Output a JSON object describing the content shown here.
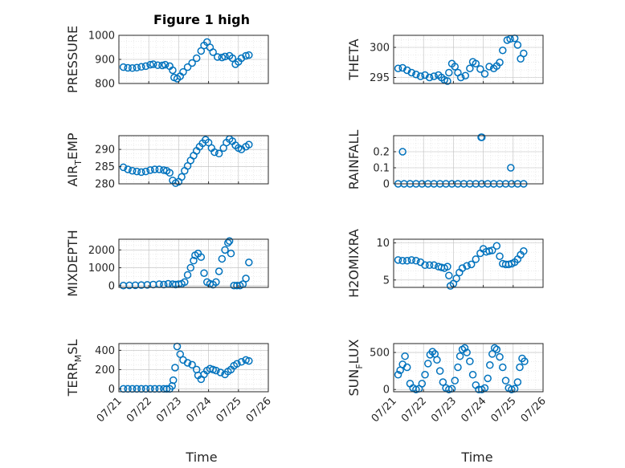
{
  "figure": {
    "title": "Figure 1 high",
    "marker_color": "#0072BD",
    "x_tick_labels": [
      "07/21",
      "07/22",
      "07/23",
      "07/24",
      "07/25",
      "07/26"
    ],
    "xlabel": "Time"
  },
  "chart_data": [
    {
      "type": "scatter",
      "ylabel": "PRESSURE",
      "ylabel_sub": "",
      "ylim": [
        800,
        1000
      ],
      "yticks": [
        800,
        900,
        1000
      ],
      "xlim": [
        0,
        5
      ],
      "x": [
        0.15,
        0.3,
        0.45,
        0.6,
        0.75,
        0.9,
        1.05,
        1.15,
        1.3,
        1.45,
        1.55,
        1.7,
        1.8,
        1.85,
        1.95,
        2.05,
        2.15,
        2.3,
        2.45,
        2.6,
        2.75,
        2.85,
        2.95,
        3.05,
        3.15,
        3.3,
        3.45,
        3.55,
        3.7,
        3.8,
        3.9,
        4.0,
        4.1,
        4.25,
        4.35
      ],
      "y": [
        868,
        865,
        864,
        866,
        869,
        872,
        878,
        880,
        876,
        875,
        878,
        872,
        855,
        825,
        820,
        830,
        848,
        868,
        885,
        905,
        935,
        958,
        972,
        950,
        930,
        910,
        908,
        912,
        915,
        905,
        880,
        890,
        905,
        915,
        918
      ]
    },
    {
      "type": "scatter",
      "ylabel": "THETA",
      "ylabel_sub": "",
      "ylim": [
        294,
        302
      ],
      "yticks": [
        295,
        300
      ],
      "xlim": [
        0,
        5
      ],
      "x": [
        0.15,
        0.3,
        0.45,
        0.6,
        0.75,
        0.9,
        1.05,
        1.2,
        1.35,
        1.5,
        1.6,
        1.7,
        1.8,
        1.85,
        1.95,
        2.05,
        2.15,
        2.25,
        2.4,
        2.55,
        2.65,
        2.75,
        2.9,
        3.05,
        3.2,
        3.35,
        3.45,
        3.55,
        3.65,
        3.8,
        3.9,
        4.05,
        4.15,
        4.25,
        4.35
      ],
      "y": [
        296.5,
        296.6,
        296.2,
        295.8,
        295.5,
        295.2,
        295.4,
        295.0,
        295.2,
        295.4,
        295.0,
        294.6,
        294.4,
        295.8,
        297.3,
        296.8,
        295.8,
        295.0,
        295.3,
        296.5,
        297.6,
        297.3,
        296.4,
        295.6,
        296.8,
        296.5,
        296.9,
        297.5,
        299.5,
        301.2,
        301.4,
        301.5,
        300.4,
        298.1,
        299.0
      ]
    },
    {
      "type": "scatter",
      "ylabel": "AIR",
      "ylabel_sub": "T",
      "ylabel_suffix": "EMP",
      "ylim": [
        280,
        294
      ],
      "yticks": [
        280,
        285,
        290
      ],
      "xlim": [
        0,
        5
      ],
      "x": [
        0.15,
        0.3,
        0.45,
        0.6,
        0.75,
        0.9,
        1.05,
        1.2,
        1.35,
        1.5,
        1.6,
        1.7,
        1.8,
        1.9,
        2.0,
        2.1,
        2.2,
        2.3,
        2.4,
        2.5,
        2.6,
        2.7,
        2.8,
        2.9,
        3.0,
        3.1,
        3.2,
        3.35,
        3.5,
        3.6,
        3.7,
        3.8,
        3.9,
        4.0,
        4.1,
        4.25,
        4.35
      ],
      "y": [
        284.8,
        284.2,
        283.8,
        283.6,
        283.4,
        283.6,
        284.0,
        284.2,
        284.2,
        284.0,
        283.8,
        283.2,
        281.0,
        280.2,
        280.6,
        282.0,
        283.8,
        285.2,
        286.8,
        288.2,
        289.6,
        290.8,
        291.8,
        292.8,
        292.0,
        290.4,
        289.2,
        288.8,
        290.4,
        292.0,
        293.0,
        292.4,
        291.2,
        290.4,
        290.0,
        290.8,
        291.4
      ]
    },
    {
      "type": "scatter",
      "ylabel": "RAINFALL",
      "ylabel_sub": "",
      "ylim": [
        0,
        0.3
      ],
      "yticks": [
        0,
        0.1,
        0.2
      ],
      "xlim": [
        0,
        5
      ],
      "x": [
        0.15,
        0.35,
        0.55,
        0.75,
        0.95,
        1.15,
        1.35,
        1.55,
        1.75,
        1.95,
        2.15,
        2.35,
        2.55,
        2.75,
        2.95,
        3.15,
        3.35,
        3.55,
        3.75,
        3.95,
        4.15,
        4.35,
        0.3,
        2.93,
        2.95,
        3.92
      ],
      "y": [
        0,
        0,
        0,
        0,
        0,
        0,
        0,
        0,
        0,
        0,
        0,
        0,
        0,
        0,
        0,
        0,
        0,
        0,
        0,
        0,
        0,
        0,
        0.2,
        0.29,
        0.29,
        0.1
      ]
    },
    {
      "type": "scatter",
      "ylabel": "MIXDEPTH",
      "ylabel_sub": "",
      "ylim": [
        -100,
        2600
      ],
      "yticks": [
        0,
        1000,
        2000
      ],
      "xlim": [
        0,
        5
      ],
      "x": [
        0.15,
        0.35,
        0.55,
        0.75,
        0.95,
        1.15,
        1.35,
        1.5,
        1.65,
        1.8,
        1.9,
        2.0,
        2.1,
        2.2,
        2.3,
        2.4,
        2.5,
        2.55,
        2.65,
        2.75,
        2.85,
        2.95,
        3.05,
        3.15,
        3.25,
        3.35,
        3.45,
        3.55,
        3.65,
        3.7,
        3.75,
        3.85,
        3.95,
        4.05,
        4.15,
        4.25,
        4.35
      ],
      "y": [
        0,
        10,
        20,
        30,
        40,
        60,
        80,
        60,
        100,
        80,
        60,
        80,
        100,
        200,
        600,
        1000,
        1400,
        1700,
        1800,
        1600,
        700,
        200,
        100,
        50,
        200,
        800,
        1500,
        2000,
        2400,
        2500,
        1800,
        0,
        0,
        0,
        80,
        400,
        1300
      ]
    },
    {
      "type": "scatter",
      "ylabel": "H2OMIXRA",
      "ylabel_sub": "",
      "ylim": [
        4,
        10.5
      ],
      "yticks": [
        5,
        10
      ],
      "xlim": [
        0,
        5
      ],
      "x": [
        0.15,
        0.3,
        0.45,
        0.6,
        0.75,
        0.9,
        1.05,
        1.2,
        1.35,
        1.5,
        1.6,
        1.7,
        1.8,
        1.85,
        1.9,
        2.0,
        2.1,
        2.2,
        2.3,
        2.45,
        2.6,
        2.75,
        2.9,
        3.0,
        3.1,
        3.2,
        3.3,
        3.45,
        3.55,
        3.65,
        3.75,
        3.85,
        3.95,
        4.05,
        4.15,
        4.25,
        4.35
      ],
      "y": [
        7.7,
        7.6,
        7.6,
        7.7,
        7.6,
        7.4,
        7.0,
        7.0,
        7.0,
        6.8,
        6.7,
        6.6,
        6.8,
        5.6,
        4.2,
        4.5,
        5.2,
        6.0,
        6.6,
        6.9,
        7.1,
        7.8,
        8.6,
        9.2,
        8.8,
        8.9,
        9.0,
        9.6,
        8.2,
        7.2,
        7.1,
        7.1,
        7.2,
        7.4,
        7.8,
        8.4,
        8.9
      ]
    },
    {
      "type": "scatter",
      "ylabel": "TERR",
      "ylabel_sub": "M",
      "ylabel_suffix": "SL",
      "ylim": [
        -30,
        470
      ],
      "yticks": [
        0,
        200,
        400
      ],
      "xlim": [
        0,
        5
      ],
      "x": [
        0.15,
        0.3,
        0.45,
        0.6,
        0.75,
        0.9,
        1.05,
        1.2,
        1.35,
        1.5,
        1.6,
        1.7,
        1.78,
        1.82,
        1.88,
        1.95,
        2.05,
        2.15,
        2.3,
        2.45,
        2.6,
        2.65,
        2.75,
        2.85,
        2.95,
        3.05,
        3.15,
        3.25,
        3.4,
        3.55,
        3.65,
        3.75,
        3.85,
        3.95,
        4.1,
        4.25,
        4.35
      ],
      "y": [
        0,
        0,
        0,
        0,
        0,
        0,
        0,
        0,
        0,
        0,
        0,
        0,
        30,
        90,
        220,
        440,
        360,
        300,
        270,
        250,
        200,
        140,
        100,
        150,
        190,
        210,
        200,
        190,
        170,
        150,
        180,
        200,
        240,
        260,
        280,
        300,
        290
      ]
    },
    {
      "type": "scatter",
      "ylabel": "SUN",
      "ylabel_sub": "F",
      "ylabel_suffix": "LUX",
      "ylim": [
        -30,
        620
      ],
      "yticks": [
        0,
        500
      ],
      "xlim": [
        0,
        5
      ],
      "x": [
        0.15,
        0.22,
        0.3,
        0.38,
        0.45,
        0.55,
        0.65,
        0.75,
        0.85,
        0.95,
        1.05,
        1.15,
        1.22,
        1.3,
        1.38,
        1.45,
        1.55,
        1.65,
        1.75,
        1.85,
        1.95,
        2.05,
        2.15,
        2.22,
        2.3,
        2.38,
        2.45,
        2.55,
        2.65,
        2.75,
        2.85,
        2.95,
        3.05,
        3.15,
        3.22,
        3.3,
        3.38,
        3.45,
        3.55,
        3.65,
        3.75,
        3.85,
        3.95,
        4.05,
        4.15,
        4.22,
        4.3,
        4.38
      ],
      "y": [
        200,
        260,
        340,
        450,
        300,
        80,
        20,
        0,
        10,
        80,
        200,
        350,
        470,
        510,
        480,
        400,
        250,
        100,
        20,
        0,
        10,
        120,
        300,
        450,
        540,
        560,
        500,
        380,
        200,
        60,
        0,
        0,
        20,
        150,
        330,
        480,
        560,
        540,
        440,
        300,
        120,
        20,
        0,
        10,
        100,
        300,
        420,
        380
      ]
    }
  ]
}
